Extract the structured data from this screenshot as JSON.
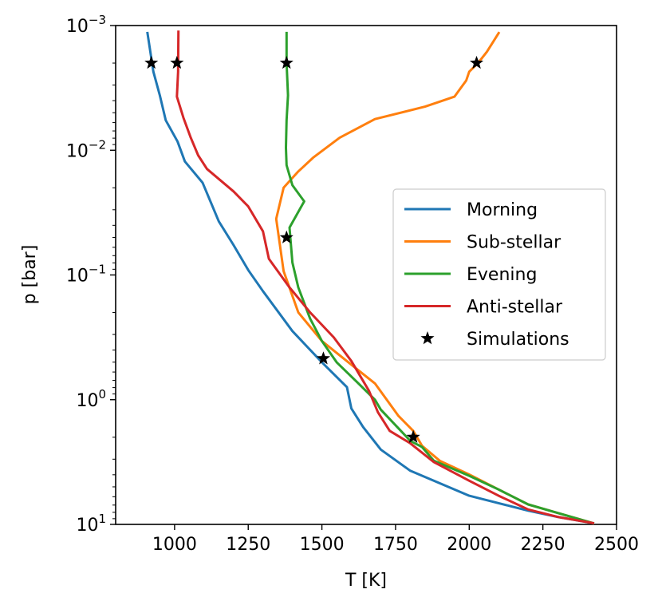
{
  "chart_data": {
    "type": "line",
    "title": "",
    "xlabel": "T [K]",
    "ylabel": "p [bar]",
    "xscale": "linear",
    "yscale": "log",
    "yinverted": true,
    "xlim": [
      800,
      2500
    ],
    "ylim_log10": [
      1,
      -3
    ],
    "xticks": [
      1000,
      1250,
      1500,
      1750,
      2000,
      2250,
      2500
    ],
    "xtick_labels": [
      "1000",
      "1250",
      "1500",
      "1750",
      "2000",
      "2250",
      "2500"
    ],
    "yticks_log10": [
      -3,
      -2,
      -1,
      0,
      1
    ],
    "ytick_labels": [
      {
        "base": "10",
        "exp": "−3"
      },
      {
        "base": "10",
        "exp": "−2"
      },
      {
        "base": "10",
        "exp": "−1"
      },
      {
        "base": "10",
        "exp": "0"
      },
      {
        "base": "10",
        "exp": "1"
      }
    ],
    "legend_position": "center-right",
    "series": [
      {
        "name": "Morning",
        "color": "#1f77b4",
        "points": [
          [
            908,
            -2.94
          ],
          [
            928,
            -2.63
          ],
          [
            950,
            -2.44
          ],
          [
            970,
            -2.24
          ],
          [
            1010,
            -2.07
          ],
          [
            1035,
            -1.91
          ],
          [
            1095,
            -1.74
          ],
          [
            1150,
            -1.43
          ],
          [
            1200,
            -1.24
          ],
          [
            1250,
            -1.04
          ],
          [
            1300,
            -0.87
          ],
          [
            1400,
            -0.55
          ],
          [
            1500,
            -0.3
          ],
          [
            1585,
            -0.1
          ],
          [
            1600,
            0.07
          ],
          [
            1640,
            0.22
          ],
          [
            1700,
            0.4
          ],
          [
            1800,
            0.57
          ],
          [
            2000,
            0.77
          ],
          [
            2100,
            0.83
          ],
          [
            2200,
            0.89
          ],
          [
            2300,
            0.94
          ],
          [
            2420,
            0.99
          ]
        ]
      },
      {
        "name": "Sub-stellar",
        "color": "#ff7f0e",
        "points": [
          [
            2100,
            -2.94
          ],
          [
            2060,
            -2.79
          ],
          [
            2030,
            -2.7
          ],
          [
            2000,
            -2.63
          ],
          [
            1990,
            -2.56
          ],
          [
            1950,
            -2.43
          ],
          [
            1850,
            -2.35
          ],
          [
            1680,
            -2.25
          ],
          [
            1560,
            -2.1
          ],
          [
            1470,
            -1.94
          ],
          [
            1420,
            -1.83
          ],
          [
            1370,
            -1.7
          ],
          [
            1345,
            -1.45
          ],
          [
            1370,
            -1.03
          ],
          [
            1420,
            -0.7
          ],
          [
            1500,
            -0.47
          ],
          [
            1590,
            -0.3
          ],
          [
            1680,
            -0.13
          ],
          [
            1760,
            0.13
          ],
          [
            1810,
            0.25
          ],
          [
            1840,
            0.37
          ],
          [
            1900,
            0.49
          ],
          [
            2000,
            0.6
          ],
          [
            2100,
            0.72
          ],
          [
            2200,
            0.84
          ],
          [
            2420,
            0.99
          ]
        ]
      },
      {
        "name": "Evening",
        "color": "#2ca02c",
        "points": [
          [
            1380,
            -2.94
          ],
          [
            1380,
            -2.7
          ],
          [
            1385,
            -2.44
          ],
          [
            1380,
            -2.24
          ],
          [
            1378,
            -2.02
          ],
          [
            1380,
            -1.88
          ],
          [
            1400,
            -1.72
          ],
          [
            1440,
            -1.59
          ],
          [
            1390,
            -1.38
          ],
          [
            1400,
            -1.1
          ],
          [
            1420,
            -0.9
          ],
          [
            1460,
            -0.65
          ],
          [
            1500,
            -0.47
          ],
          [
            1550,
            -0.3
          ],
          [
            1620,
            -0.14
          ],
          [
            1680,
            0.0
          ],
          [
            1700,
            0.08
          ],
          [
            1800,
            0.33
          ],
          [
            1840,
            0.38
          ],
          [
            1880,
            0.49
          ],
          [
            2000,
            0.61
          ],
          [
            2100,
            0.72
          ],
          [
            2200,
            0.84
          ],
          [
            2420,
            0.99
          ]
        ]
      },
      {
        "name": "Anti-stellar",
        "color": "#d62728",
        "points": [
          [
            1013,
            -2.95
          ],
          [
            1012,
            -2.63
          ],
          [
            1008,
            -2.43
          ],
          [
            1030,
            -2.26
          ],
          [
            1055,
            -2.1
          ],
          [
            1080,
            -1.96
          ],
          [
            1110,
            -1.85
          ],
          [
            1200,
            -1.67
          ],
          [
            1250,
            -1.55
          ],
          [
            1300,
            -1.35
          ],
          [
            1320,
            -1.13
          ],
          [
            1390,
            -0.9
          ],
          [
            1460,
            -0.7
          ],
          [
            1540,
            -0.5
          ],
          [
            1600,
            -0.31
          ],
          [
            1660,
            -0.07
          ],
          [
            1690,
            0.1
          ],
          [
            1730,
            0.25
          ],
          [
            1800,
            0.35
          ],
          [
            1880,
            0.5
          ],
          [
            2000,
            0.65
          ],
          [
            2100,
            0.77
          ],
          [
            2200,
            0.88
          ],
          [
            2300,
            0.94
          ],
          [
            2420,
            0.99
          ]
        ]
      }
    ],
    "simulations": {
      "name": "Simulations",
      "marker": "star",
      "color": "#000000",
      "points": [
        [
          921,
          -2.7
        ],
        [
          1008,
          -2.7
        ],
        [
          1380,
          -2.7
        ],
        [
          2025,
          -2.7
        ],
        [
          1380,
          -1.3
        ],
        [
          1505,
          -0.33
        ],
        [
          1810,
          0.3
        ]
      ]
    }
  }
}
